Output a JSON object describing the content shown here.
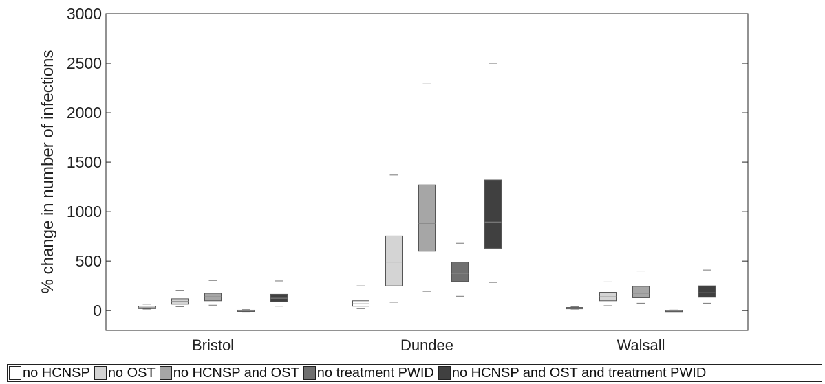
{
  "chart_data": {
    "type": "box",
    "ylabel": "% change in number of infections",
    "xlabel": "",
    "ylim": [
      -200,
      3000
    ],
    "yticks": [
      0,
      500,
      1000,
      1500,
      2000,
      2500,
      3000
    ],
    "categories": [
      "Bristol",
      "Dundee",
      "Walsall"
    ],
    "grid": false,
    "legend_position": "bottom",
    "series": [
      {
        "name": "no HCNSP",
        "color": "#ffffff",
        "boxes": [
          {
            "min": 15,
            "q1": 20,
            "median": 33,
            "q3": 45,
            "max": 65
          },
          {
            "min": 20,
            "q1": 45,
            "median": 70,
            "q3": 100,
            "max": 250
          },
          {
            "min": 15,
            "q1": 18,
            "median": 25,
            "q3": 32,
            "max": 40
          }
        ]
      },
      {
        "name": "no OST",
        "color": "#d4d4d4",
        "boxes": [
          {
            "min": 40,
            "q1": 65,
            "median": 95,
            "q3": 120,
            "max": 205
          },
          {
            "min": 85,
            "q1": 250,
            "median": 490,
            "q3": 755,
            "max": 1370
          },
          {
            "min": 50,
            "q1": 100,
            "median": 140,
            "q3": 185,
            "max": 290
          }
        ]
      },
      {
        "name": "no HCNSP and OST",
        "color": "#a6a6a6",
        "boxes": [
          {
            "min": 55,
            "q1": 100,
            "median": 140,
            "q3": 175,
            "max": 305
          },
          {
            "min": 195,
            "q1": 600,
            "median": 880,
            "q3": 1270,
            "max": 2290
          },
          {
            "min": 75,
            "q1": 130,
            "median": 175,
            "q3": 245,
            "max": 400
          }
        ]
      },
      {
        "name": "no treatment PWID",
        "color": "#707070",
        "boxes": [
          {
            "min": -10,
            "q1": -5,
            "median": 0,
            "q3": 5,
            "max": 10
          },
          {
            "min": 145,
            "q1": 295,
            "median": 375,
            "q3": 490,
            "max": 680
          },
          {
            "min": -5,
            "q1": -2,
            "median": 0,
            "q3": 3,
            "max": 6
          }
        ]
      },
      {
        "name": "no HCNSP and OST and treatment PWID",
        "color": "#404040",
        "boxes": [
          {
            "min": 45,
            "q1": 90,
            "median": 125,
            "q3": 165,
            "max": 300
          },
          {
            "min": 285,
            "q1": 630,
            "median": 895,
            "q3": 1320,
            "max": 2500
          },
          {
            "min": 75,
            "q1": 135,
            "median": 180,
            "q3": 250,
            "max": 410
          }
        ]
      }
    ]
  }
}
